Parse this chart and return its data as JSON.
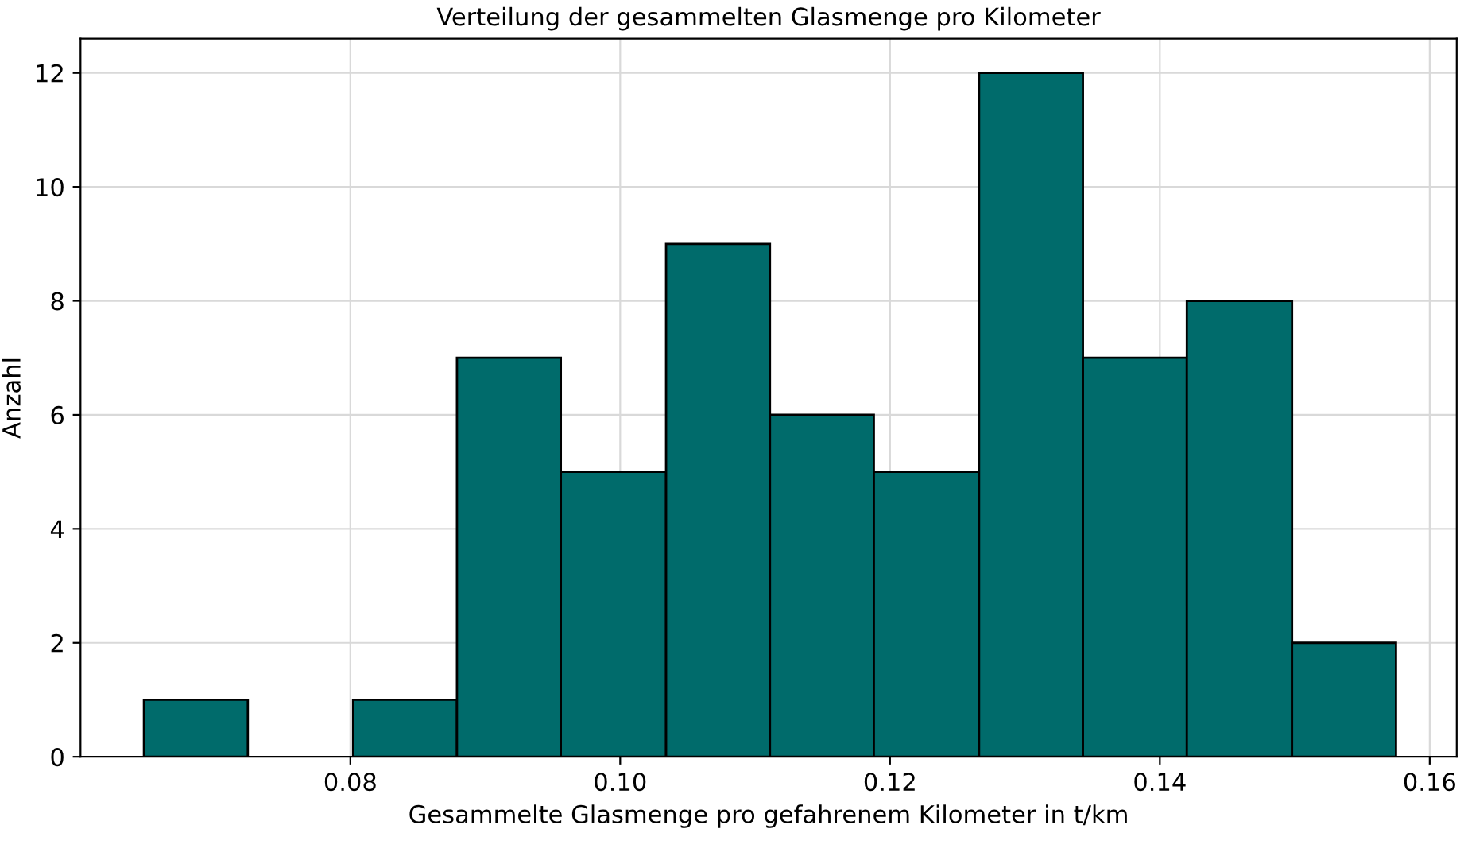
{
  "chart_data": {
    "type": "histogram",
    "title": "Verteilung der gesammelten Glasmenge pro Kilometer",
    "xlabel": "Gesammelte Glasmenge pro gefahrenem Kilometer in t/km",
    "ylabel": "Anzahl",
    "bins": [
      0.0647,
      0.0724,
      0.0802,
      0.0879,
      0.0956,
      0.1034,
      0.1111,
      0.1188,
      0.1266,
      0.1343,
      0.142,
      0.1498,
      0.1575
    ],
    "values": [
      1,
      0,
      1,
      7,
      5,
      9,
      6,
      5,
      12,
      7,
      8,
      2
    ],
    "color": "#006b6b",
    "xlim": [
      0.06,
      0.162
    ],
    "xticks": [
      {
        "value": 0.08,
        "label": "0.08"
      },
      {
        "value": 0.1,
        "label": "0.10"
      },
      {
        "value": 0.12,
        "label": "0.12"
      },
      {
        "value": 0.14,
        "label": "0.14"
      },
      {
        "value": 0.16,
        "label": "0.16"
      }
    ],
    "ylim": [
      0,
      12.6
    ],
    "yticks": [
      0,
      2,
      4,
      6,
      8,
      10,
      12
    ],
    "grid": true
  }
}
